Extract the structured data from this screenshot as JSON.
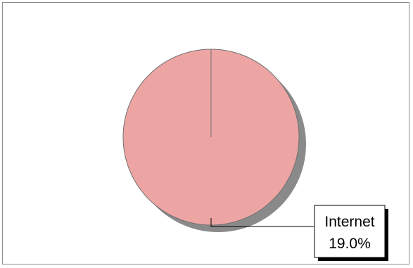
{
  "chart_data": {
    "type": "pie",
    "slices": [
      {
        "label": "Internet",
        "value": 19.0,
        "display": "19.0%",
        "color": "#eda5a4"
      }
    ],
    "title": "",
    "legend": "none",
    "shadow_color": "#8a8a8a",
    "edge_color": "#707070"
  }
}
